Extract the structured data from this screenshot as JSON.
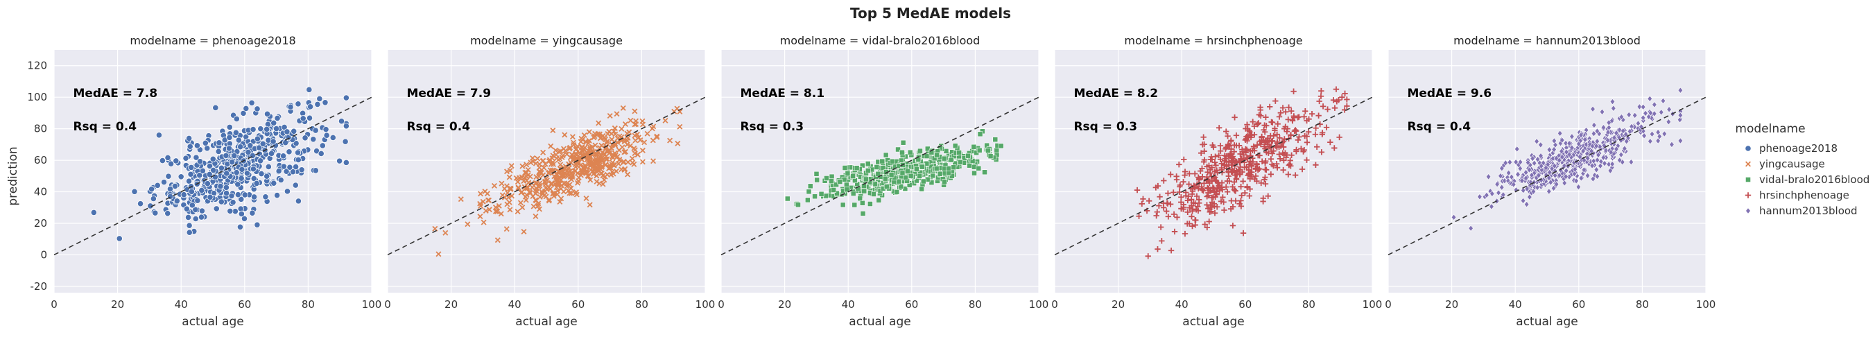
{
  "figure": {
    "suptitle": "Top 5 MedAE models",
    "shared_ylabel": "prediction",
    "legend_title": "modelname"
  },
  "chart_data": [
    {
      "type": "scatter",
      "title": "modelname = phenoage2018",
      "xlabel": "actual age",
      "ylabel": "prediction",
      "xlim": [
        0,
        100
      ],
      "ylim": [
        -24,
        130
      ],
      "xticks": [
        0,
        20,
        40,
        60,
        80,
        100
      ],
      "yticks": [
        -20,
        0,
        20,
        40,
        60,
        80,
        100,
        120
      ],
      "grid": true,
      "annotations": [
        "MedAE = 7.8",
        "Rsq = 0.4"
      ],
      "reference_line": {
        "x": [
          0,
          100
        ],
        "y": [
          0,
          100
        ],
        "style": "dashed"
      },
      "series": [
        {
          "name": "phenoage2018",
          "color": "#4c72b0",
          "marker": "circle",
          "center_intercept": 12,
          "slope": 0.78,
          "spread": 14,
          "n": 520
        }
      ]
    },
    {
      "type": "scatter",
      "title": "modelname = yingcausage",
      "xlabel": "actual age",
      "xlim": [
        0,
        100
      ],
      "ylim": [
        -24,
        130
      ],
      "xticks": [
        0,
        20,
        40,
        60,
        80,
        100
      ],
      "grid": true,
      "annotations": [
        "MedAE = 7.9",
        "Rsq = 0.4"
      ],
      "reference_line": {
        "x": [
          0,
          100
        ],
        "y": [
          0,
          100
        ],
        "style": "dashed"
      },
      "series": [
        {
          "name": "yingcausage",
          "color": "#dd8452",
          "marker": "x",
          "center_intercept": 8,
          "slope": 0.82,
          "spread": 9,
          "n": 520
        }
      ]
    },
    {
      "type": "scatter",
      "title": "modelname = vidal-bralo2016blood",
      "xlabel": "actual age",
      "xlim": [
        0,
        100
      ],
      "ylim": [
        -24,
        130
      ],
      "xticks": [
        0,
        20,
        40,
        60,
        80,
        100
      ],
      "grid": true,
      "annotations": [
        "MedAE = 8.1",
        "Rsq = 0.3"
      ],
      "reference_line": {
        "x": [
          0,
          100
        ],
        "y": [
          0,
          100
        ],
        "style": "dashed"
      },
      "series": [
        {
          "name": "vidal-bralo2016blood",
          "color": "#55a868",
          "marker": "square",
          "center_intercept": 26,
          "slope": 0.45,
          "spread": 6,
          "n": 520
        }
      ]
    },
    {
      "type": "scatter",
      "title": "modelname = hrsinchphenoage",
      "xlabel": "actual age",
      "xlim": [
        0,
        100
      ],
      "ylim": [
        -24,
        130
      ],
      "xticks": [
        0,
        20,
        40,
        60,
        80,
        100
      ],
      "grid": true,
      "annotations": [
        "MedAE = 8.2",
        "Rsq = 0.3"
      ],
      "reference_line": {
        "x": [
          0,
          100
        ],
        "y": [
          0,
          100
        ],
        "style": "dashed"
      },
      "series": [
        {
          "name": "hrsinchphenoage",
          "color": "#c44e52",
          "marker": "plus",
          "center_intercept": -8,
          "slope": 1.1,
          "spread": 13,
          "n": 520
        }
      ]
    },
    {
      "type": "scatter",
      "title": "modelname = hannum2013blood",
      "xlabel": "actual age",
      "xlim": [
        0,
        100
      ],
      "ylim": [
        -24,
        130
      ],
      "xticks": [
        0,
        20,
        40,
        60,
        80,
        100
      ],
      "grid": true,
      "annotations": [
        "MedAE = 9.6",
        "Rsq = 0.4"
      ],
      "reference_line": {
        "x": [
          0,
          100
        ],
        "y": [
          0,
          100
        ],
        "style": "dashed"
      },
      "series": [
        {
          "name": "hannum2013blood",
          "color": "#8172b3",
          "marker": "diamond",
          "center_intercept": 14,
          "slope": 0.82,
          "spread": 8,
          "n": 520
        }
      ]
    }
  ],
  "legend": {
    "title": "modelname",
    "placement": "right",
    "entries": [
      {
        "label": "phenoage2018",
        "color": "#4c72b0",
        "marker": "circle"
      },
      {
        "label": "yingcausage",
        "color": "#dd8452",
        "marker": "x"
      },
      {
        "label": "vidal-bralo2016blood",
        "color": "#55a868",
        "marker": "square"
      },
      {
        "label": "hrsinchphenoage",
        "color": "#c44e52",
        "marker": "plus"
      },
      {
        "label": "hannum2013blood",
        "color": "#8172b3",
        "marker": "diamond"
      }
    ]
  }
}
